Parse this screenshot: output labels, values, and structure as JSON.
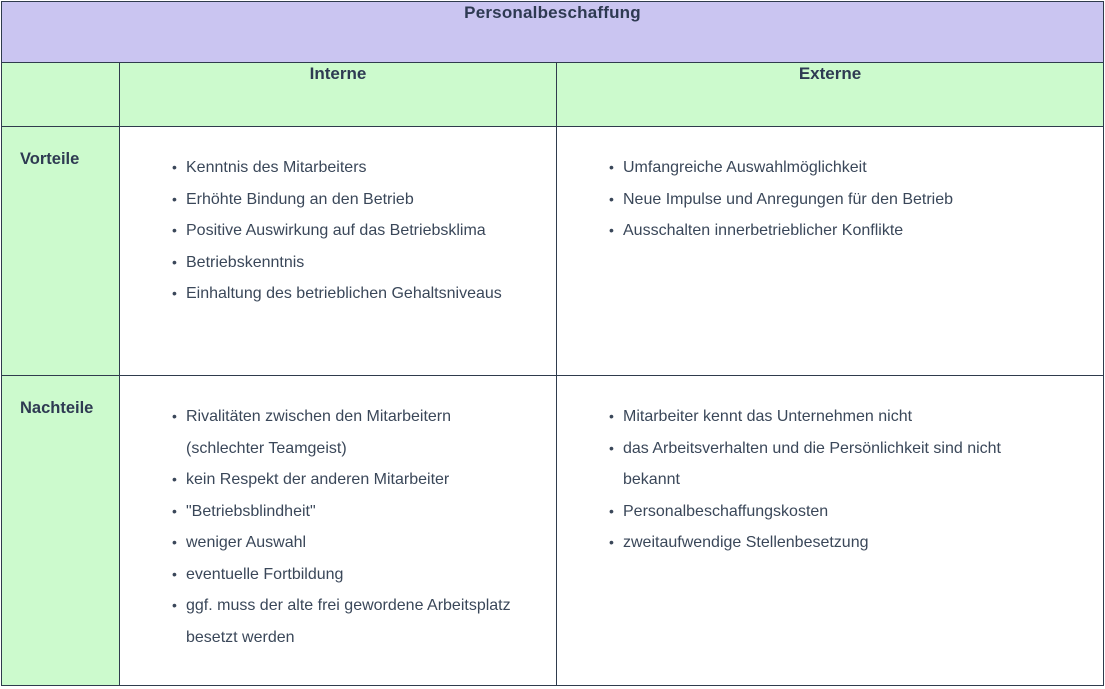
{
  "table": {
    "title": "Personalbeschaffung",
    "columns": {
      "internal_label": "Interne",
      "external_label": "Externe"
    },
    "rows": {
      "advantages": {
        "label": "Vorteile",
        "internal_items": [
          "Kenntnis des Mitarbeiters",
          "Erhöhte Bindung an den Betrieb",
          "Positive Auswirkung auf das Betriebsklima",
          "Betriebskenntnis",
          "Einhaltung des betrieblichen Gehaltsniveaus"
        ],
        "external_items": [
          "Umfangreiche Auswahlmöglichkeit",
          "Neue Impulse und Anregungen für den Betrieb",
          "Ausschalten innerbetrieblicher Konflikte"
        ]
      },
      "disadvantages": {
        "label": "Nachteile",
        "internal_items": [
          "Rivalitäten zwischen den Mitarbeitern (schlechter Teamgeist)",
          "kein Respekt der anderen Mitarbeiter",
          "\"Betriebsblindheit\"",
          "weniger Auswahl",
          "eventuelle Fortbildung",
          "ggf. muss der alte frei gewordene Arbeitsplatz besetzt werden"
        ],
        "external_items": [
          "Mitarbeiter kennt das Unternehmen nicht",
          "das Arbeitsverhalten und die Persönlichkeit sind nicht bekannt",
          "Personalbeschaffungskosten",
          "zweitaufwendige Stellenbesetzung"
        ]
      }
    },
    "colors": {
      "title_bg": "#cac5f1",
      "header_bg": "#ccfacd",
      "border": "#2f3b4d",
      "text": "#3a4759",
      "heading_text": "#2e3a52"
    }
  }
}
